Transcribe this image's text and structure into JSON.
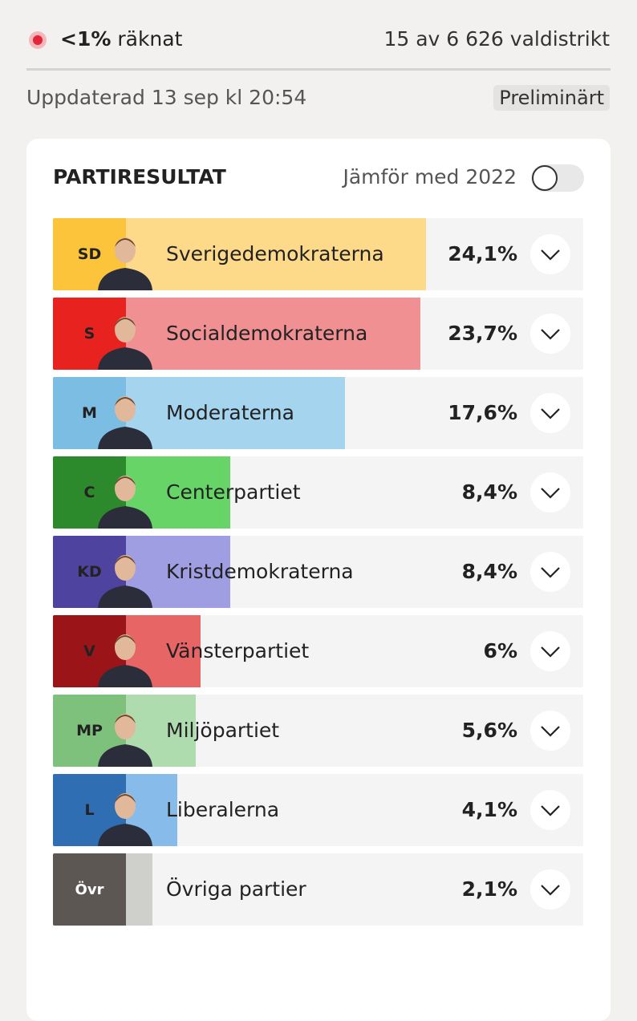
{
  "header": {
    "counted": "<1%",
    "counted_label": "räknat",
    "districts": "15 av 6 626 valdistrikt",
    "updated": "Uppdaterad 13 sep kl 20:54",
    "status": "Preliminärt"
  },
  "results": {
    "title": "PARTIRESULTAT",
    "compare_label": "Jämför med 2022",
    "parties": [
      {
        "abbr": "SD",
        "name": "Sverigedemokraterna",
        "value": 24.1,
        "value_label": "24,1%",
        "color": "#fbc43a",
        "light_color": "#fdd98a"
      },
      {
        "abbr": "S",
        "name": "Socialdemokraterna",
        "value": 23.7,
        "value_label": "23,7%",
        "color": "#e8231f",
        "light_color": "#f09093"
      },
      {
        "abbr": "M",
        "name": "Moderaterna",
        "value": 17.6,
        "value_label": "17,6%",
        "color": "#7cbde3",
        "light_color": "#a5d4ee"
      },
      {
        "abbr": "C",
        "name": "Centerpartiet",
        "value": 8.4,
        "value_label": "8,4%",
        "color": "#2d8a2c",
        "light_color": "#66d466"
      },
      {
        "abbr": "KD",
        "name": "Kristdemokraterna",
        "value": 8.4,
        "value_label": "8,4%",
        "color": "#4e44a0",
        "light_color": "#9f9ee2"
      },
      {
        "abbr": "V",
        "name": "Vänsterpartiet",
        "value": 6,
        "value_label": "6%",
        "color": "#9b1518",
        "light_color": "#e86566"
      },
      {
        "abbr": "MP",
        "name": "Miljöpartiet",
        "value": 5.6,
        "value_label": "5,6%",
        "color": "#7ec17c",
        "light_color": "#aedcae"
      },
      {
        "abbr": "L",
        "name": "Liberalerna",
        "value": 4.1,
        "value_label": "4,1%",
        "color": "#2f6eb2",
        "light_color": "#86bbea"
      },
      {
        "abbr": "Övr",
        "name": "Övriga partier",
        "value": 2.1,
        "value_label": "2,1%",
        "color": "#5d5753",
        "light_color": "#cfcfcb"
      }
    ]
  }
}
